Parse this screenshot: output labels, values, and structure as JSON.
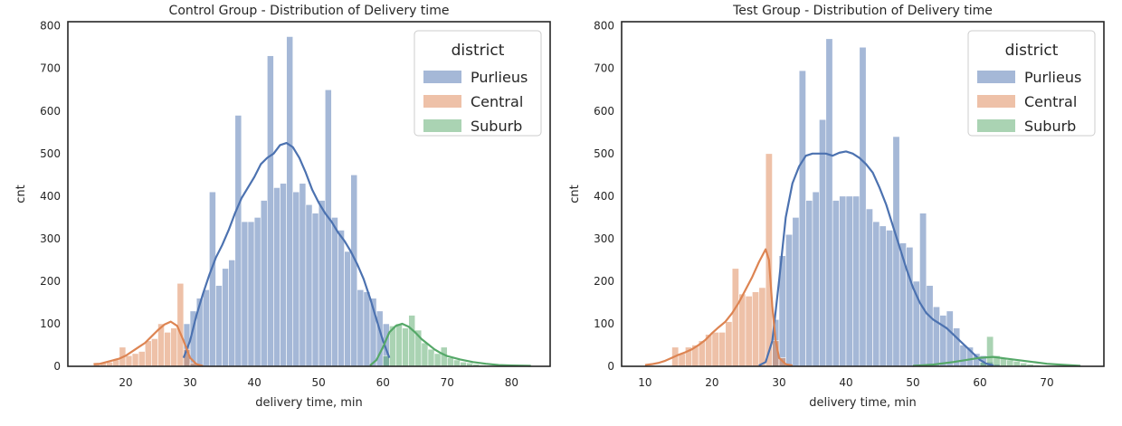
{
  "colors": {
    "Purlieus": "#4c72b0",
    "Central": "#dd8452",
    "Suburb": "#55a868"
  },
  "chart_data": [
    {
      "type": "bar",
      "title": "Control Group - Distribution of Delivery time",
      "xlabel": "delivery time, min",
      "ylabel": "cnt",
      "xlim": [
        11,
        86
      ],
      "ylim": [
        0,
        810
      ],
      "xticks": [
        20,
        30,
        40,
        50,
        60,
        70,
        80
      ],
      "yticks": [
        0,
        100,
        200,
        300,
        400,
        500,
        600,
        700,
        800
      ],
      "grid": false,
      "legend": {
        "title": "district",
        "position": "top-right",
        "entries": [
          "Purlieus",
          "Central",
          "Suburb"
        ]
      },
      "bin_width": 1,
      "series": [
        {
          "name": "Purlieus",
          "bins": [
            [
              29,
              100
            ],
            [
              30,
              130
            ],
            [
              31,
              160
            ],
            [
              32,
              180
            ],
            [
              33,
              410
            ],
            [
              34,
              190
            ],
            [
              35,
              230
            ],
            [
              36,
              250
            ],
            [
              37,
              590
            ],
            [
              38,
              340
            ],
            [
              39,
              340
            ],
            [
              40,
              350
            ],
            [
              41,
              390
            ],
            [
              42,
              730
            ],
            [
              43,
              420
            ],
            [
              44,
              430
            ],
            [
              45,
              775
            ],
            [
              46,
              410
            ],
            [
              47,
              430
            ],
            [
              48,
              380
            ],
            [
              49,
              360
            ],
            [
              50,
              390
            ],
            [
              51,
              650
            ],
            [
              52,
              350
            ],
            [
              53,
              320
            ],
            [
              54,
              270
            ],
            [
              55,
              450
            ],
            [
              56,
              180
            ],
            [
              57,
              175
            ],
            [
              58,
              160
            ],
            [
              59,
              130
            ],
            [
              60,
              100
            ]
          ],
          "kde": [
            [
              29,
              20
            ],
            [
              30,
              60
            ],
            [
              31,
              120
            ],
            [
              32,
              170
            ],
            [
              33,
              215
            ],
            [
              34,
              255
            ],
            [
              35,
              285
            ],
            [
              36,
              320
            ],
            [
              37,
              360
            ],
            [
              38,
              395
            ],
            [
              39,
              420
            ],
            [
              40,
              445
            ],
            [
              41,
              475
            ],
            [
              42,
              490
            ],
            [
              43,
              500
            ],
            [
              44,
              520
            ],
            [
              45,
              525
            ],
            [
              46,
              515
            ],
            [
              47,
              490
            ],
            [
              48,
              455
            ],
            [
              49,
              415
            ],
            [
              50,
              385
            ],
            [
              51,
              360
            ],
            [
              52,
              340
            ],
            [
              53,
              315
            ],
            [
              54,
              295
            ],
            [
              55,
              270
            ],
            [
              56,
              240
            ],
            [
              57,
              205
            ],
            [
              58,
              160
            ],
            [
              59,
              110
            ],
            [
              60,
              60
            ],
            [
              61,
              20
            ]
          ]
        },
        {
          "name": "Central",
          "bins": [
            [
              15,
              5
            ],
            [
              16,
              8
            ],
            [
              17,
              10
            ],
            [
              18,
              15
            ],
            [
              19,
              45
            ],
            [
              20,
              25
            ],
            [
              21,
              30
            ],
            [
              22,
              35
            ],
            [
              23,
              60
            ],
            [
              24,
              65
            ],
            [
              25,
              100
            ],
            [
              26,
              80
            ],
            [
              27,
              90
            ],
            [
              28,
              195
            ],
            [
              29,
              40
            ],
            [
              30,
              8
            ]
          ],
          "kde": [
            [
              15,
              5
            ],
            [
              16,
              6
            ],
            [
              17,
              10
            ],
            [
              18,
              14
            ],
            [
              19,
              18
            ],
            [
              20,
              25
            ],
            [
              21,
              35
            ],
            [
              22,
              45
            ],
            [
              23,
              55
            ],
            [
              24,
              70
            ],
            [
              25,
              85
            ],
            [
              26,
              98
            ],
            [
              27,
              105
            ],
            [
              28,
              95
            ],
            [
              29,
              60
            ],
            [
              30,
              20
            ],
            [
              31,
              5
            ],
            [
              32,
              1
            ]
          ]
        },
        {
          "name": "Suburb",
          "bins": [
            [
              60,
              25
            ],
            [
              61,
              95
            ],
            [
              62,
              100
            ],
            [
              63,
              90
            ],
            [
              64,
              120
            ],
            [
              65,
              85
            ],
            [
              66,
              55
            ],
            [
              67,
              40
            ],
            [
              68,
              30
            ],
            [
              69,
              45
            ],
            [
              70,
              20
            ],
            [
              71,
              15
            ],
            [
              72,
              10
            ],
            [
              73,
              8
            ],
            [
              74,
              5
            ],
            [
              75,
              3
            ]
          ],
          "kde": [
            [
              58,
              2
            ],
            [
              59,
              15
            ],
            [
              60,
              45
            ],
            [
              61,
              80
            ],
            [
              62,
              95
            ],
            [
              63,
              100
            ],
            [
              64,
              93
            ],
            [
              65,
              80
            ],
            [
              66,
              64
            ],
            [
              67,
              52
            ],
            [
              68,
              40
            ],
            [
              69,
              31
            ],
            [
              70,
              24
            ],
            [
              72,
              16
            ],
            [
              74,
              10
            ],
            [
              76,
              6
            ],
            [
              78,
              3
            ],
            [
              80,
              2
            ],
            [
              83,
              1
            ]
          ]
        }
      ]
    },
    {
      "type": "bar",
      "title": "Test Group - Distribution of Delivery time",
      "xlabel": "delivery time, min",
      "ylabel": "cnt",
      "xlim": [
        6.5,
        78.5
      ],
      "ylim": [
        0,
        810
      ],
      "xticks": [
        10,
        20,
        30,
        40,
        50,
        60,
        70
      ],
      "yticks": [
        0,
        100,
        200,
        300,
        400,
        500,
        600,
        700,
        800
      ],
      "grid": false,
      "legend": {
        "title": "district",
        "position": "top-right",
        "entries": [
          "Purlieus",
          "Central",
          "Suburb"
        ]
      },
      "bin_width": 1,
      "series": [
        {
          "name": "Purlieus",
          "bins": [
            [
              29,
              110
            ],
            [
              30,
              260
            ],
            [
              31,
              310
            ],
            [
              32,
              350
            ],
            [
              33,
              695
            ],
            [
              34,
              390
            ],
            [
              35,
              410
            ],
            [
              36,
              580
            ],
            [
              37,
              770
            ],
            [
              38,
              390
            ],
            [
              39,
              400
            ],
            [
              40,
              400
            ],
            [
              41,
              400
            ],
            [
              42,
              750
            ],
            [
              43,
              370
            ],
            [
              44,
              340
            ],
            [
              45,
              330
            ],
            [
              46,
              320
            ],
            [
              47,
              540
            ],
            [
              48,
              290
            ],
            [
              49,
              280
            ],
            [
              50,
              200
            ],
            [
              51,
              360
            ],
            [
              52,
              190
            ],
            [
              53,
              140
            ],
            [
              54,
              120
            ],
            [
              55,
              130
            ],
            [
              56,
              90
            ],
            [
              57,
              50
            ],
            [
              58,
              45
            ],
            [
              59,
              30
            ],
            [
              60,
              25
            ],
            [
              61,
              10
            ],
            [
              62,
              5
            ]
          ],
          "kde": [
            [
              27,
              2
            ],
            [
              28,
              10
            ],
            [
              29,
              60
            ],
            [
              30,
              200
            ],
            [
              31,
              350
            ],
            [
              32,
              430
            ],
            [
              33,
              470
            ],
            [
              34,
              495
            ],
            [
              35,
              500
            ],
            [
              36,
              500
            ],
            [
              37,
              500
            ],
            [
              38,
              495
            ],
            [
              39,
              502
            ],
            [
              40,
              505
            ],
            [
              41,
              500
            ],
            [
              42,
              490
            ],
            [
              43,
              475
            ],
            [
              44,
              455
            ],
            [
              45,
              420
            ],
            [
              46,
              380
            ],
            [
              47,
              330
            ],
            [
              48,
              280
            ],
            [
              49,
              230
            ],
            [
              50,
              185
            ],
            [
              51,
              150
            ],
            [
              52,
              125
            ],
            [
              53,
              110
            ],
            [
              54,
              100
            ],
            [
              55,
              90
            ],
            [
              56,
              75
            ],
            [
              57,
              60
            ],
            [
              58,
              45
            ],
            [
              59,
              30
            ],
            [
              60,
              15
            ],
            [
              61,
              6
            ],
            [
              62,
              2
            ]
          ]
        },
        {
          "name": "Central",
          "bins": [
            [
              14,
              45
            ],
            [
              15,
              30
            ],
            [
              16,
              45
            ],
            [
              17,
              50
            ],
            [
              18,
              60
            ],
            [
              19,
              75
            ],
            [
              20,
              80
            ],
            [
              21,
              80
            ],
            [
              22,
              105
            ],
            [
              23,
              230
            ],
            [
              24,
              170
            ],
            [
              25,
              165
            ],
            [
              26,
              175
            ],
            [
              27,
              185
            ],
            [
              28,
              500
            ],
            [
              29,
              60
            ],
            [
              30,
              20
            ]
          ],
          "kde": [
            [
              10,
              3
            ],
            [
              11,
              5
            ],
            [
              12,
              8
            ],
            [
              13,
              13
            ],
            [
              14,
              20
            ],
            [
              15,
              27
            ],
            [
              16,
              33
            ],
            [
              17,
              40
            ],
            [
              18,
              50
            ],
            [
              19,
              62
            ],
            [
              20,
              78
            ],
            [
              21,
              92
            ],
            [
              22,
              105
            ],
            [
              23,
              125
            ],
            [
              24,
              150
            ],
            [
              25,
              180
            ],
            [
              26,
              210
            ],
            [
              27,
              245
            ],
            [
              28,
              275
            ],
            [
              28.5,
              250
            ],
            [
              29,
              140
            ],
            [
              29.5,
              60
            ],
            [
              30,
              20
            ],
            [
              31,
              5
            ],
            [
              32,
              2
            ]
          ]
        },
        {
          "name": "Suburb",
          "bins": [
            [
              60,
              10
            ],
            [
              61,
              70
            ],
            [
              62,
              25
            ],
            [
              63,
              20
            ],
            [
              64,
              15
            ],
            [
              65,
              12
            ],
            [
              66,
              8
            ],
            [
              67,
              5
            ],
            [
              68,
              3
            ]
          ],
          "kde": [
            [
              50,
              1
            ],
            [
              53,
              4
            ],
            [
              56,
              10
            ],
            [
              58,
              15
            ],
            [
              60,
              20
            ],
            [
              62,
              22
            ],
            [
              64,
              18
            ],
            [
              66,
              14
            ],
            [
              68,
              10
            ],
            [
              70,
              6
            ],
            [
              73,
              3
            ],
            [
              75,
              1
            ]
          ]
        }
      ]
    }
  ]
}
